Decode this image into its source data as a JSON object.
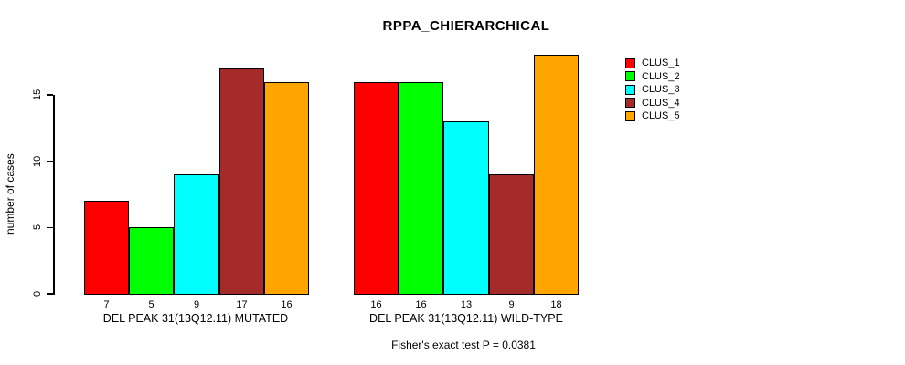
{
  "chart_data": {
    "type": "bar",
    "title": "RPPA_CHIERARCHICAL",
    "ylabel": "number of cases",
    "xlabel": "",
    "ylim": [
      0,
      18
    ],
    "y_ticks": [
      0,
      5,
      10,
      15
    ],
    "grid": false,
    "legend_position": "right-outside",
    "categories": [
      "DEL PEAK 31(13Q12.11) MUTATED",
      "DEL PEAK 31(13Q12.11) WILD-TYPE"
    ],
    "series": [
      {
        "name": "CLUS_1",
        "color": "#FF0000",
        "values": [
          7,
          16
        ]
      },
      {
        "name": "CLUS_2",
        "color": "#00FF00",
        "values": [
          5,
          16
        ]
      },
      {
        "name": "CLUS_3",
        "color": "#00FFFF",
        "values": [
          9,
          13
        ]
      },
      {
        "name": "CLUS_4",
        "color": "#A52A2A",
        "values": [
          17,
          9
        ]
      },
      {
        "name": "CLUS_5",
        "color": "#FFA500",
        "values": [
          16,
          18
        ]
      }
    ],
    "bar_value_labels_shown": true,
    "annotation": "Fisher's exact test P = 0.0381"
  },
  "colors": {
    "background": "#FFFFFF",
    "axis": "#000000",
    "bar_border": "#000000",
    "text": "#000000"
  }
}
